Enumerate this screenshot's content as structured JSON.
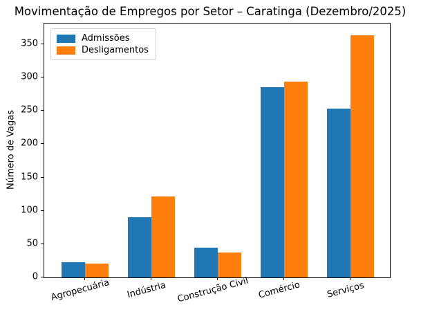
{
  "chart_data": {
    "type": "bar",
    "title": "Movimentação de Empregos por Setor – Caratinga (Dezembro/2025)",
    "xlabel": "",
    "ylabel": "Número de Vagas",
    "categories": [
      "Agropecuária",
      "Indústria",
      "Construção Civil",
      "Comércio",
      "Serviços"
    ],
    "series": [
      {
        "name": "Admissões",
        "color": "#1f77b4",
        "values": [
          23,
          90,
          45,
          286,
          253
        ]
      },
      {
        "name": "Desligamentos",
        "color": "#ff7f0e",
        "values": [
          21,
          121,
          37,
          294,
          363
        ]
      }
    ],
    "ylim": [
      0,
      381
    ],
    "yticks": [
      0,
      50,
      100,
      150,
      200,
      250,
      300,
      350
    ],
    "grid": false,
    "legend_position": "upper-left",
    "xtick_rotation": 15,
    "colors": {
      "axis": "#000000",
      "background": "#ffffff"
    }
  }
}
